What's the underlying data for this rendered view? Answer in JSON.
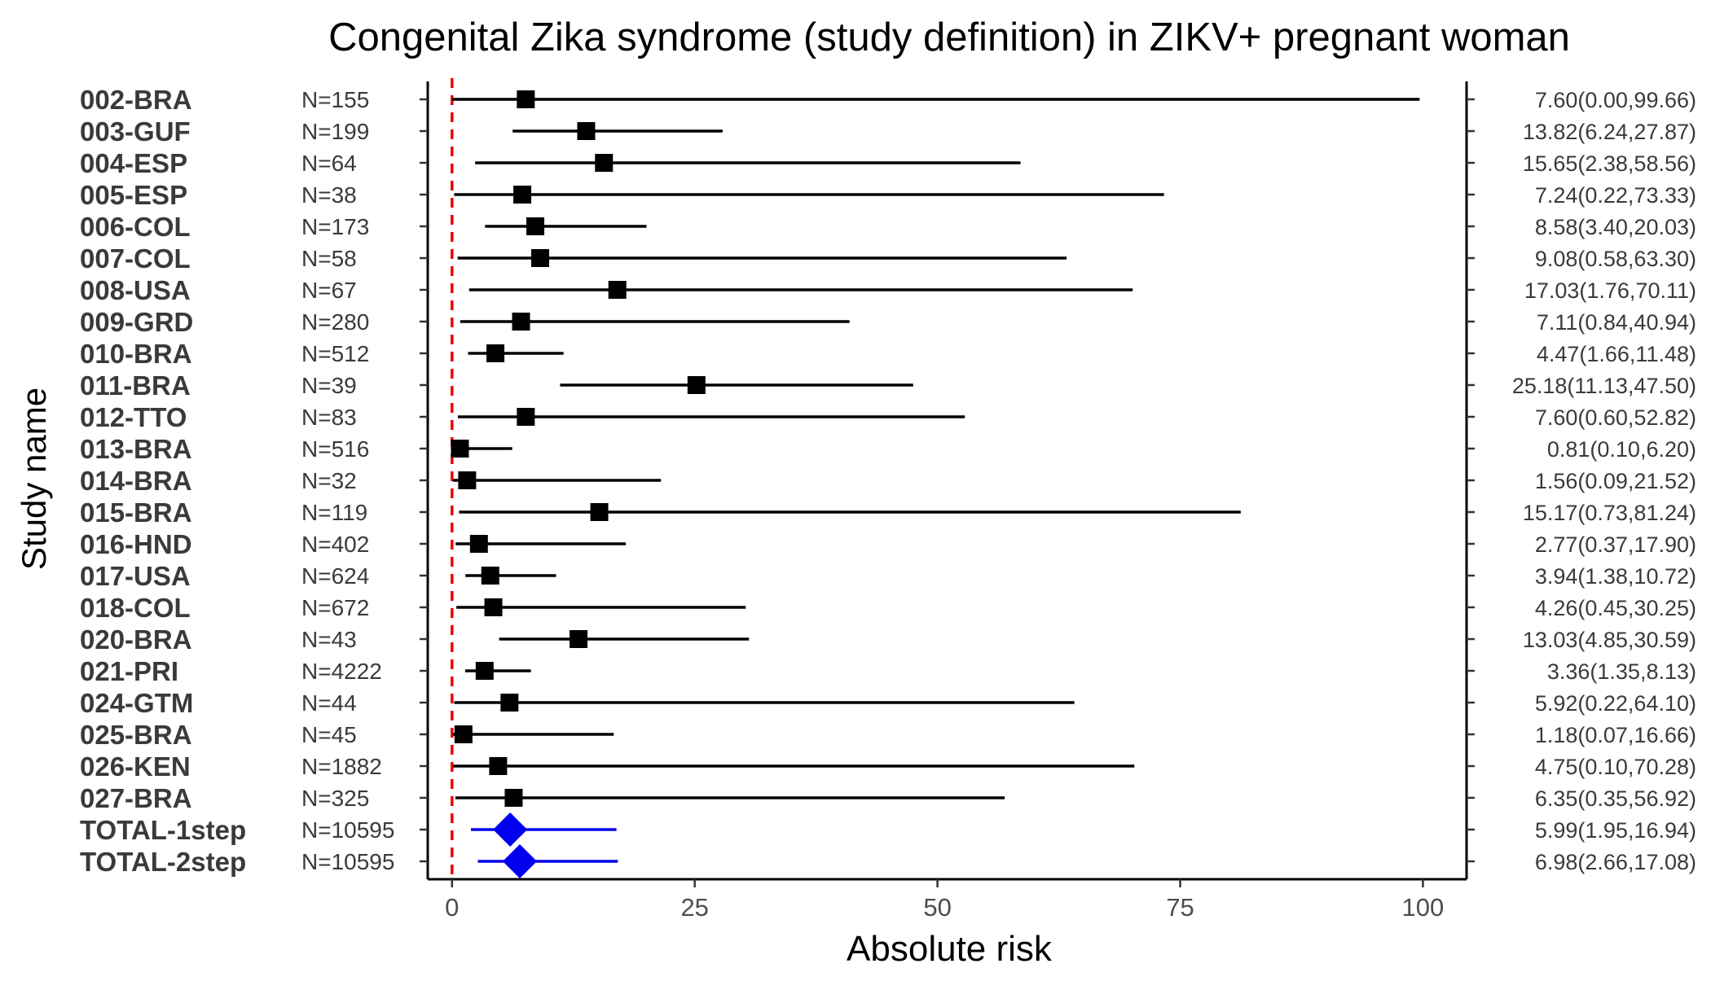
{
  "chart_data": {
    "type": "forest",
    "title": "Congenital Zika syndrome (study definition) in ZIKV+ pregnant woman",
    "xlabel": "Absolute risk",
    "ylabel": "Study name",
    "xlim": [
      -2.5,
      104.5
    ],
    "xticks": [
      0,
      25,
      50,
      75,
      100
    ],
    "xtick_labels": [
      "0",
      "25",
      "50",
      "75",
      "100"
    ],
    "reference_line": 0,
    "grid": false,
    "colors": {
      "study": "#000000",
      "total": "#0000ee",
      "reference": "#ee0000"
    },
    "studies": [
      {
        "name": "002-BRA",
        "n": "N=155",
        "est": 7.6,
        "lo": 0.0,
        "hi": 99.66,
        "label": "7.60(0.00,99.66)",
        "total": false
      },
      {
        "name": "003-GUF",
        "n": "N=199",
        "est": 13.82,
        "lo": 6.24,
        "hi": 27.87,
        "label": "13.82(6.24,27.87)",
        "total": false
      },
      {
        "name": "004-ESP",
        "n": "N=64",
        "est": 15.65,
        "lo": 2.38,
        "hi": 58.56,
        "label": "15.65(2.38,58.56)",
        "total": false
      },
      {
        "name": "005-ESP",
        "n": "N=38",
        "est": 7.24,
        "lo": 0.22,
        "hi": 73.33,
        "label": "7.24(0.22,73.33)",
        "total": false
      },
      {
        "name": "006-COL",
        "n": "N=173",
        "est": 8.58,
        "lo": 3.4,
        "hi": 20.03,
        "label": "8.58(3.40,20.03)",
        "total": false
      },
      {
        "name": "007-COL",
        "n": "N=58",
        "est": 9.08,
        "lo": 0.58,
        "hi": 63.3,
        "label": "9.08(0.58,63.30)",
        "total": false
      },
      {
        "name": "008-USA",
        "n": "N=67",
        "est": 17.03,
        "lo": 1.76,
        "hi": 70.11,
        "label": "17.03(1.76,70.11)",
        "total": false
      },
      {
        "name": "009-GRD",
        "n": "N=280",
        "est": 7.11,
        "lo": 0.84,
        "hi": 40.94,
        "label": "7.11(0.84,40.94)",
        "total": false
      },
      {
        "name": "010-BRA",
        "n": "N=512",
        "est": 4.47,
        "lo": 1.66,
        "hi": 11.48,
        "label": "4.47(1.66,11.48)",
        "total": false
      },
      {
        "name": "011-BRA",
        "n": "N=39",
        "est": 25.18,
        "lo": 11.13,
        "hi": 47.5,
        "label": "25.18(11.13,47.50)",
        "total": false
      },
      {
        "name": "012-TTO",
        "n": "N=83",
        "est": 7.6,
        "lo": 0.6,
        "hi": 52.82,
        "label": "7.60(0.60,52.82)",
        "total": false
      },
      {
        "name": "013-BRA",
        "n": "N=516",
        "est": 0.81,
        "lo": 0.1,
        "hi": 6.2,
        "label": "0.81(0.10,6.20)",
        "total": false
      },
      {
        "name": "014-BRA",
        "n": "N=32",
        "est": 1.56,
        "lo": 0.09,
        "hi": 21.52,
        "label": "1.56(0.09,21.52)",
        "total": false
      },
      {
        "name": "015-BRA",
        "n": "N=119",
        "est": 15.17,
        "lo": 0.73,
        "hi": 81.24,
        "label": "15.17(0.73,81.24)",
        "total": false
      },
      {
        "name": "016-HND",
        "n": "N=402",
        "est": 2.77,
        "lo": 0.37,
        "hi": 17.9,
        "label": "2.77(0.37,17.90)",
        "total": false
      },
      {
        "name": "017-USA",
        "n": "N=624",
        "est": 3.94,
        "lo": 1.38,
        "hi": 10.72,
        "label": "3.94(1.38,10.72)",
        "total": false
      },
      {
        "name": "018-COL",
        "n": "N=672",
        "est": 4.26,
        "lo": 0.45,
        "hi": 30.25,
        "label": "4.26(0.45,30.25)",
        "total": false
      },
      {
        "name": "020-BRA",
        "n": "N=43",
        "est": 13.03,
        "lo": 4.85,
        "hi": 30.59,
        "label": "13.03(4.85,30.59)",
        "total": false
      },
      {
        "name": "021-PRI",
        "n": "N=4222",
        "est": 3.36,
        "lo": 1.35,
        "hi": 8.13,
        "label": "3.36(1.35,8.13)",
        "total": false
      },
      {
        "name": "024-GTM",
        "n": "N=44",
        "est": 5.92,
        "lo": 0.22,
        "hi": 64.1,
        "label": "5.92(0.22,64.10)",
        "total": false
      },
      {
        "name": "025-BRA",
        "n": "N=45",
        "est": 1.18,
        "lo": 0.07,
        "hi": 16.66,
        "label": "1.18(0.07,16.66)",
        "total": false
      },
      {
        "name": "026-KEN",
        "n": "N=1882",
        "est": 4.75,
        "lo": 0.1,
        "hi": 70.28,
        "label": "4.75(0.10,70.28)",
        "total": false
      },
      {
        "name": "027-BRA",
        "n": "N=325",
        "est": 6.35,
        "lo": 0.35,
        "hi": 56.92,
        "label": "6.35(0.35,56.92)",
        "total": false
      },
      {
        "name": "TOTAL-1step",
        "n": "N=10595",
        "est": 5.99,
        "lo": 1.95,
        "hi": 16.94,
        "label": "5.99(1.95,16.94)",
        "total": true
      },
      {
        "name": "TOTAL-2step",
        "n": "N=10595",
        "est": 6.98,
        "lo": 2.66,
        "hi": 17.08,
        "label": "6.98(2.66,17.08)",
        "total": true
      }
    ]
  }
}
